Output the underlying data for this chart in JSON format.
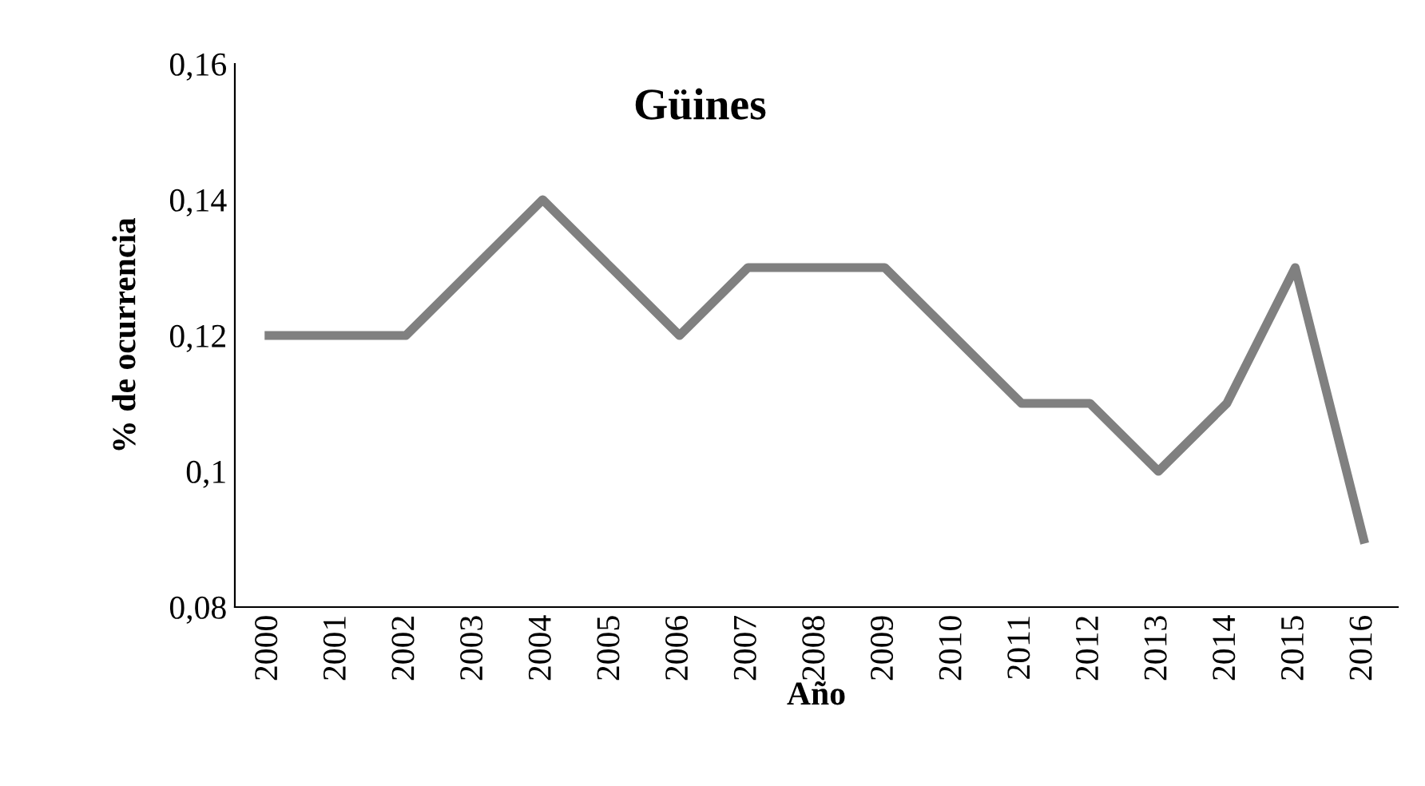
{
  "chart_data": {
    "type": "line",
    "title": "Güines",
    "xlabel": "Año",
    "ylabel": "% de ocurrencia",
    "categories": [
      "2000",
      "2001",
      "2002",
      "2003",
      "2004",
      "2005",
      "2006",
      "2007",
      "2008",
      "2009",
      "2010",
      "2011",
      "2012",
      "2013",
      "2014",
      "2015",
      "2016"
    ],
    "series": [
      {
        "color": "#808080",
        "values": [
          0.12,
          0.12,
          0.12,
          0.13,
          0.14,
          0.13,
          0.12,
          0.13,
          0.13,
          0.13,
          0.12,
          0.11,
          0.11,
          0.1,
          0.11,
          0.13,
          0.09
        ]
      }
    ],
    "ylim": [
      0.08,
      0.16
    ],
    "yticks": [
      {
        "value": 0.08,
        "label": "0,08"
      },
      {
        "value": 0.1,
        "label": "0,1"
      },
      {
        "value": 0.12,
        "label": "0,12"
      },
      {
        "value": 0.14,
        "label": "0,14"
      },
      {
        "value": 0.16,
        "label": "0,16"
      }
    ],
    "grid": false,
    "legend": false,
    "marker": "none",
    "line_style": "solid"
  }
}
